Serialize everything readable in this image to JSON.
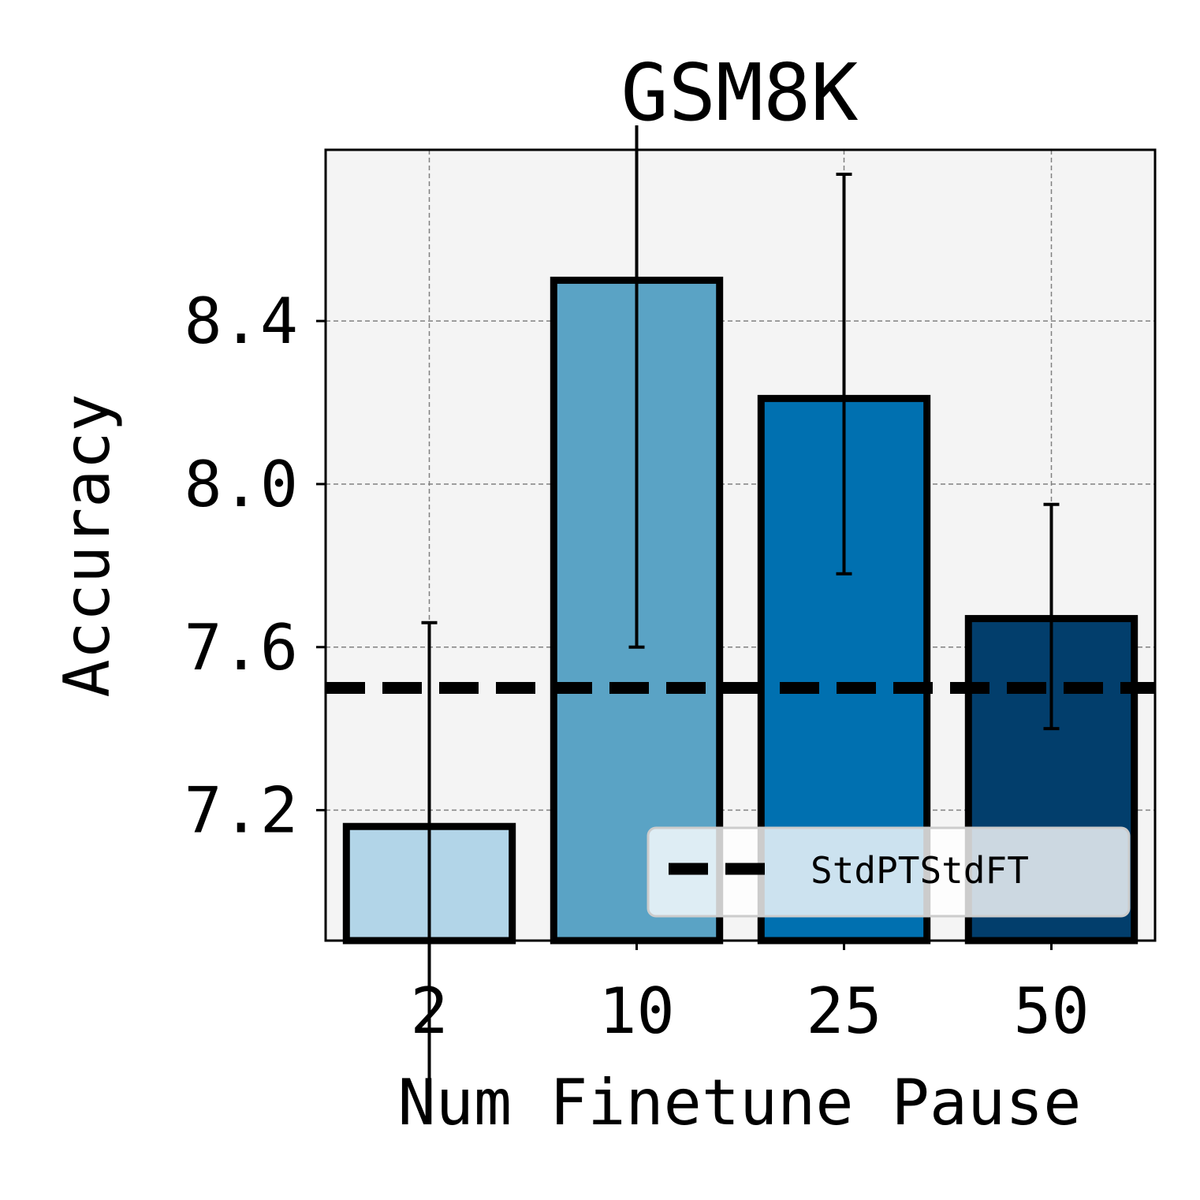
{
  "chart_data": {
    "type": "bar",
    "title": "GSM8K",
    "xlabel": "Num Finetune Pause",
    "ylabel": "Accuracy",
    "categories": [
      "2",
      "10",
      "25",
      "50"
    ],
    "values": [
      7.16,
      8.5,
      8.21,
      7.67
    ],
    "error_low": [
      6.5,
      7.6,
      7.78,
      7.4
    ],
    "error_high": [
      7.66,
      8.88,
      8.76,
      7.95
    ],
    "bar_colors": [
      "#b2d5e8",
      "#5aa3c5",
      "#0070b0",
      "#023e6c"
    ],
    "ylim": [
      6.88,
      8.82
    ],
    "yticks": [
      "7.2",
      "7.6",
      "8.0",
      "8.4"
    ],
    "reference_line": {
      "name": "StdPTStdFT",
      "value": 7.5,
      "style": "dashed"
    },
    "legend_position": "lower right",
    "grid": true,
    "background": "#f4f4f4"
  }
}
